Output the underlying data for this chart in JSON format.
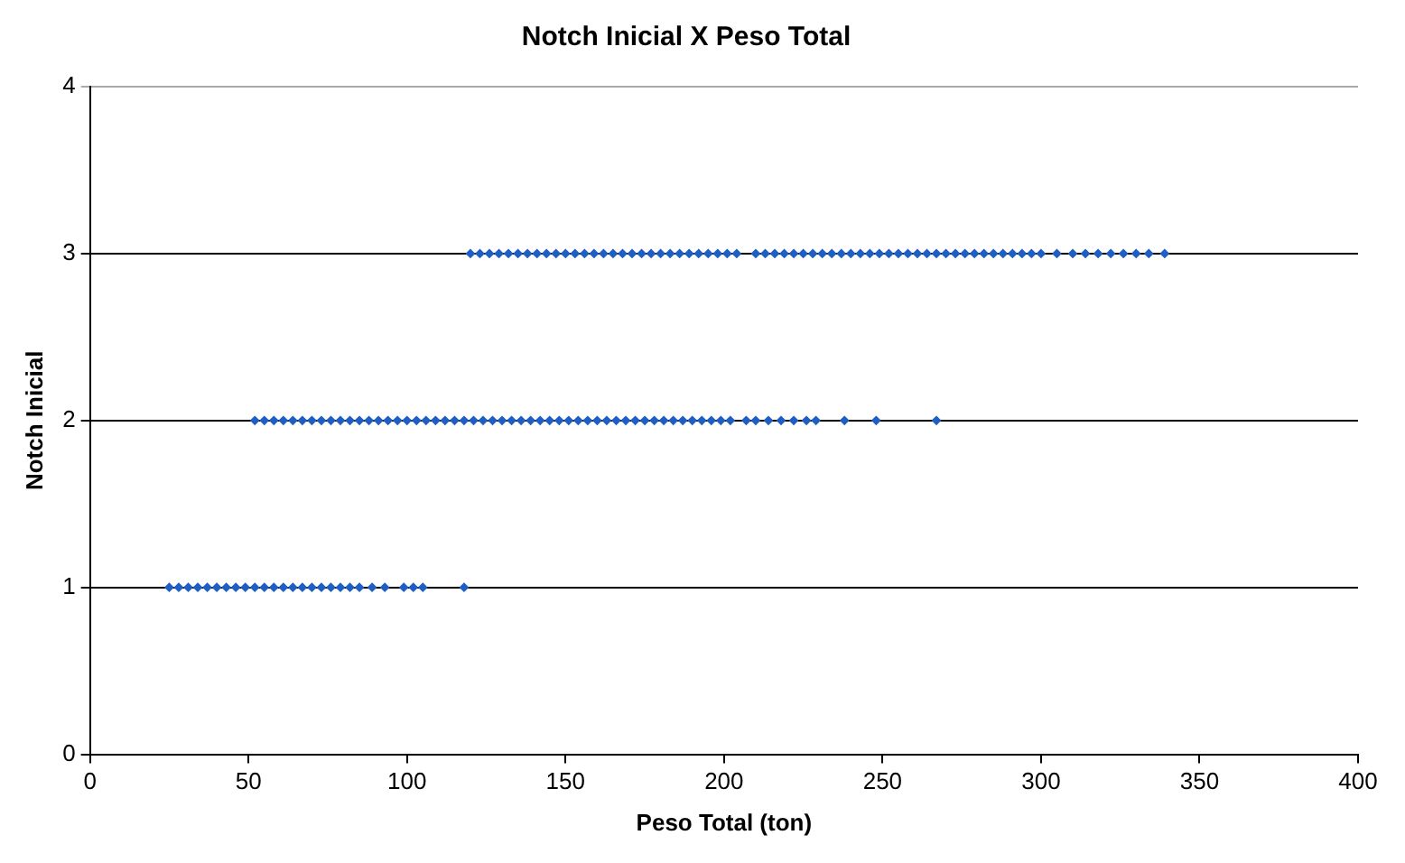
{
  "chart_data": {
    "type": "scatter",
    "title": "Notch Inicial X Peso Total",
    "xlabel": "Peso Total (ton)",
    "ylabel": "Notch Inicial",
    "series": [
      {
        "color": "#1f5fc4",
        "x": [
          25,
          28,
          31,
          34,
          37,
          40,
          43,
          46,
          49,
          52,
          55,
          58,
          61,
          64,
          67,
          70,
          73,
          76,
          79,
          82,
          85,
          89,
          93,
          99,
          102,
          105,
          118
        ],
        "values": [
          1,
          1,
          1,
          1,
          1,
          1,
          1,
          1,
          1,
          1,
          1,
          1,
          1,
          1,
          1,
          1,
          1,
          1,
          1,
          1,
          1,
          1,
          1,
          1,
          1,
          1,
          1
        ]
      },
      {
        "color": "#1f5fc4",
        "x": [
          52,
          55,
          58,
          61,
          64,
          67,
          70,
          73,
          76,
          79,
          82,
          85,
          88,
          91,
          94,
          97,
          100,
          103,
          106,
          109,
          112,
          115,
          118,
          121,
          124,
          127,
          130,
          133,
          136,
          139,
          142,
          145,
          148,
          151,
          154,
          157,
          160,
          163,
          166,
          169,
          172,
          175,
          178,
          181,
          184,
          187,
          190,
          193,
          196,
          199,
          202,
          207,
          210,
          214,
          218,
          222,
          226,
          229,
          238,
          248,
          267
        ],
        "values": [
          2,
          2,
          2,
          2,
          2,
          2,
          2,
          2,
          2,
          2,
          2,
          2,
          2,
          2,
          2,
          2,
          2,
          2,
          2,
          2,
          2,
          2,
          2,
          2,
          2,
          2,
          2,
          2,
          2,
          2,
          2,
          2,
          2,
          2,
          2,
          2,
          2,
          2,
          2,
          2,
          2,
          2,
          2,
          2,
          2,
          2,
          2,
          2,
          2,
          2,
          2,
          2,
          2,
          2,
          2,
          2,
          2,
          2,
          2,
          2,
          2
        ]
      },
      {
        "color": "#1f5fc4",
        "x": [
          120,
          123,
          126,
          129,
          132,
          135,
          138,
          141,
          144,
          147,
          150,
          153,
          156,
          159,
          162,
          165,
          168,
          171,
          174,
          177,
          180,
          183,
          186,
          189,
          192,
          195,
          198,
          201,
          204,
          210,
          213,
          216,
          219,
          222,
          225,
          228,
          231,
          234,
          237,
          240,
          243,
          246,
          249,
          252,
          255,
          258,
          261,
          264,
          267,
          270,
          273,
          276,
          279,
          282,
          285,
          288,
          291,
          294,
          297,
          300,
          305,
          310,
          314,
          318,
          322,
          326,
          330,
          334,
          339
        ],
        "values": [
          3,
          3,
          3,
          3,
          3,
          3,
          3,
          3,
          3,
          3,
          3,
          3,
          3,
          3,
          3,
          3,
          3,
          3,
          3,
          3,
          3,
          3,
          3,
          3,
          3,
          3,
          3,
          3,
          3,
          3,
          3,
          3,
          3,
          3,
          3,
          3,
          3,
          3,
          3,
          3,
          3,
          3,
          3,
          3,
          3,
          3,
          3,
          3,
          3,
          3,
          3,
          3,
          3,
          3,
          3,
          3,
          3,
          3,
          3,
          3,
          3,
          3,
          3,
          3,
          3,
          3,
          3,
          3,
          3
        ]
      }
    ],
    "xlim": [
      0,
      400
    ],
    "xticks": [
      0,
      50,
      100,
      150,
      200,
      250,
      300,
      350,
      400
    ],
    "ylim": [
      0,
      4
    ],
    "yticks": [
      0,
      1,
      2,
      3,
      4
    ],
    "grid": "y",
    "legend": false,
    "marker": "diamond"
  }
}
